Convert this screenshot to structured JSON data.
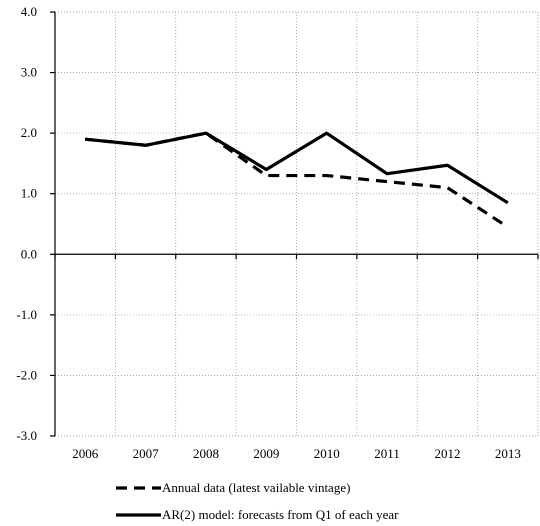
{
  "chart_data": {
    "type": "line",
    "categories": [
      "2006",
      "2007",
      "2008",
      "2009",
      "2010",
      "2011",
      "2012",
      "2013"
    ],
    "series": [
      {
        "name": "Annual data (latest vailable vintage)",
        "values": [
          1.9,
          1.8,
          2.0,
          1.3,
          1.3,
          1.2,
          1.1,
          0.45
        ],
        "style": "dashed",
        "color": "#000000"
      },
      {
        "name": "AR(2) model: forecasts from Q1 of each year",
        "values": [
          1.9,
          1.8,
          2.0,
          1.4,
          2.0,
          1.33,
          1.47,
          0.85
        ],
        "style": "solid",
        "color": "#000000"
      }
    ],
    "yticks": [
      "4.0",
      "3.0",
      "2.0",
      "1.0",
      "0.0",
      "-1.0",
      "-2.0",
      "-3.0"
    ],
    "ylim": [
      -3.0,
      4.0
    ],
    "grid": true,
    "legend_position": "bottom",
    "title": "",
    "xlabel": "",
    "ylabel": ""
  }
}
